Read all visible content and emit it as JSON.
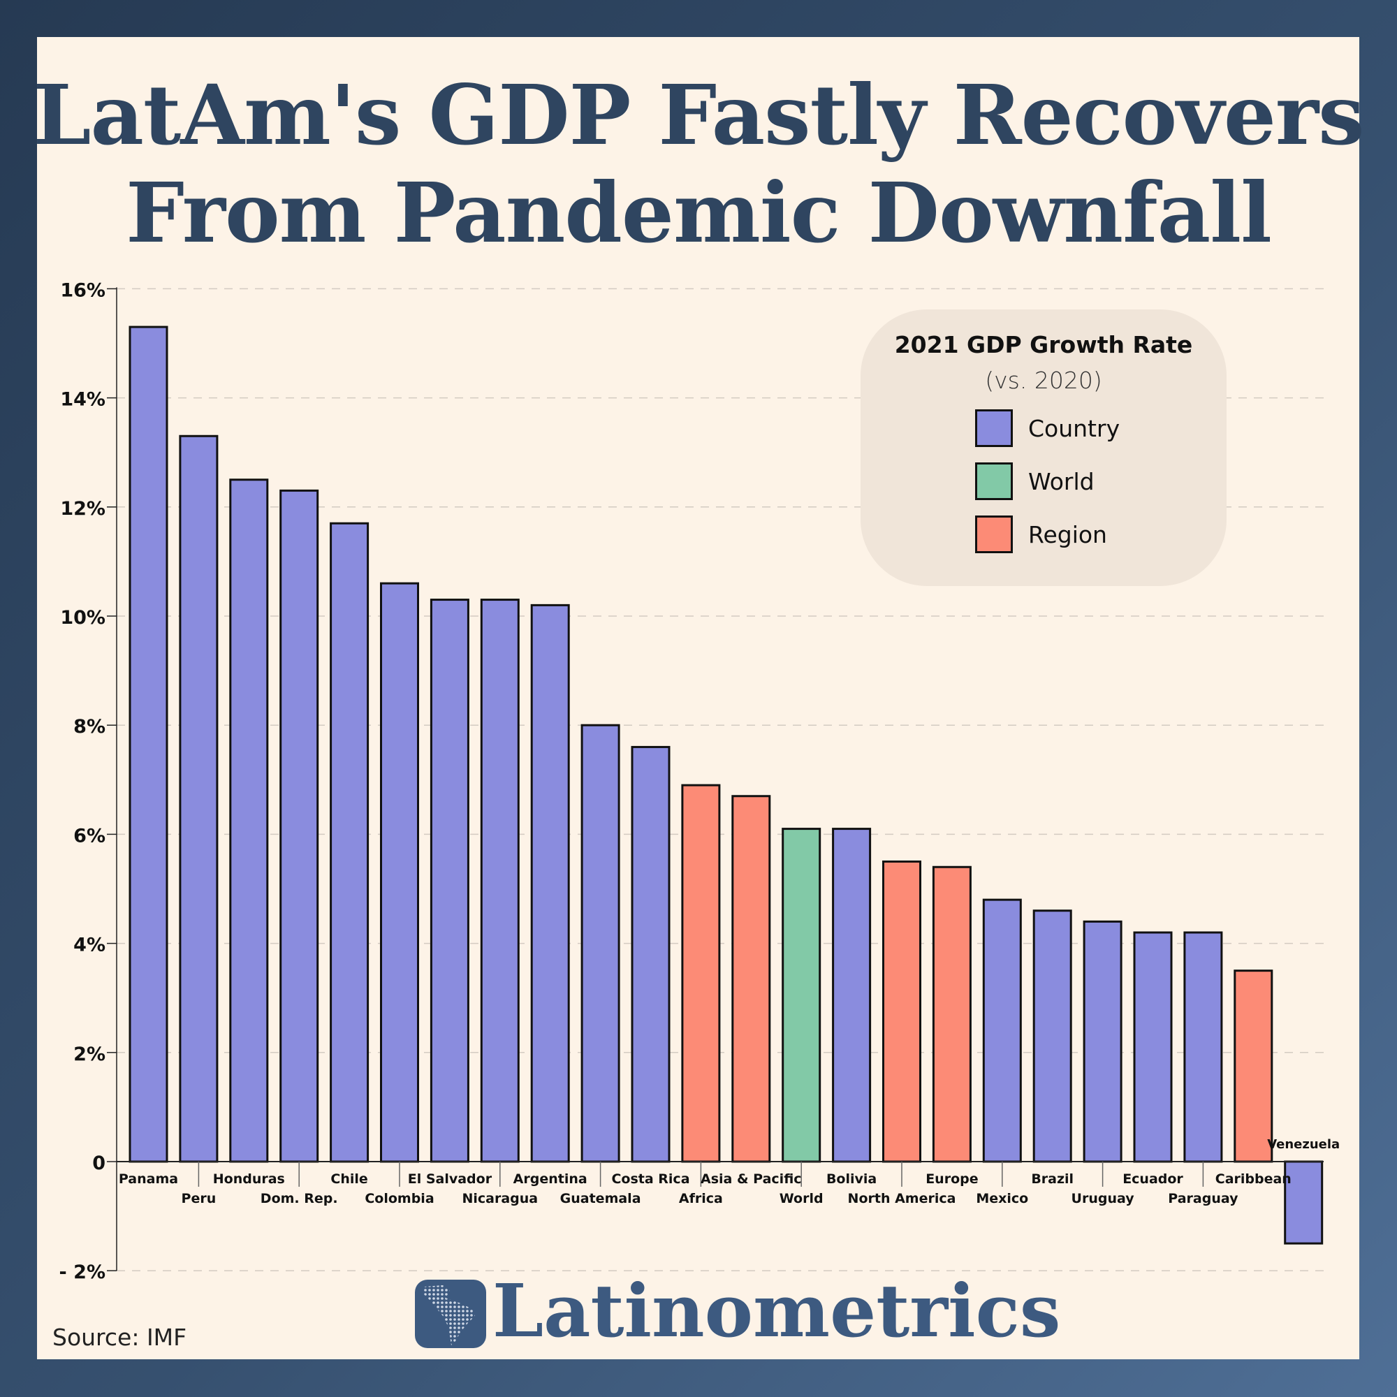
{
  "title_line1": "LatAm's GDP Fastly Recovers",
  "title_line2": "From Pandemic Downfall",
  "legend": {
    "title": "2021 GDP Growth Rate",
    "subtitle": "(vs. 2020)",
    "items": [
      {
        "label": "Country",
        "color": "#8a8cde",
        "kind": "country"
      },
      {
        "label": "World",
        "color": "#82c9a7",
        "kind": "world"
      },
      {
        "label": "Region",
        "color": "#fc8b76",
        "kind": "region"
      }
    ]
  },
  "colors": {
    "country": "#8a8cde",
    "world": "#82c9a7",
    "region": "#fc8b76",
    "title": "#2f4560",
    "brand": "#3d5a80"
  },
  "source": "Source: IMF",
  "brand": {
    "name": "Latinometrics",
    "logo_icon": "latin-america-map-icon"
  },
  "chart_data": {
    "type": "bar",
    "yticks": [
      {
        "value": 16,
        "label": "16%"
      },
      {
        "value": 14,
        "label": "14%"
      },
      {
        "value": 12,
        "label": "12%"
      },
      {
        "value": 10,
        "label": "10%"
      },
      {
        "value": 8,
        "label": "8%"
      },
      {
        "value": 6,
        "label": "6%"
      },
      {
        "value": 4,
        "label": "4%"
      },
      {
        "value": 2,
        "label": "2%"
      },
      {
        "value": 0,
        "label": "0"
      },
      {
        "value": -2,
        "label": "- 2%"
      }
    ],
    "ylim": [
      -2,
      16
    ],
    "grid": true,
    "legend_position": "top-right",
    "bars": [
      {
        "label": "Panama",
        "value": 15.3,
        "kind": "country"
      },
      {
        "label": "Peru",
        "value": 13.3,
        "kind": "country"
      },
      {
        "label": "Honduras",
        "value": 12.5,
        "kind": "country"
      },
      {
        "label": "Dom. Rep.",
        "value": 12.3,
        "kind": "country"
      },
      {
        "label": "Chile",
        "value": 11.7,
        "kind": "country"
      },
      {
        "label": "Colombia",
        "value": 10.6,
        "kind": "country"
      },
      {
        "label": "El Salvador",
        "value": 10.3,
        "kind": "country"
      },
      {
        "label": "Nicaragua",
        "value": 10.3,
        "kind": "country"
      },
      {
        "label": "Argentina",
        "value": 10.2,
        "kind": "country"
      },
      {
        "label": "Guatemala",
        "value": 8.0,
        "kind": "country"
      },
      {
        "label": "Costa Rica",
        "value": 7.6,
        "kind": "country"
      },
      {
        "label": "Africa",
        "value": 6.9,
        "kind": "region"
      },
      {
        "label": "Asia & Pacific",
        "value": 6.7,
        "kind": "region"
      },
      {
        "label": "World",
        "value": 6.1,
        "kind": "world"
      },
      {
        "label": "Bolivia",
        "value": 6.1,
        "kind": "country"
      },
      {
        "label": "North America",
        "value": 5.5,
        "kind": "region"
      },
      {
        "label": "Europe",
        "value": 5.4,
        "kind": "region"
      },
      {
        "label": "Mexico",
        "value": 4.8,
        "kind": "country"
      },
      {
        "label": "Brazil",
        "value": 4.6,
        "kind": "country"
      },
      {
        "label": "Uruguay",
        "value": 4.4,
        "kind": "country"
      },
      {
        "label": "Ecuador",
        "value": 4.2,
        "kind": "country"
      },
      {
        "label": "Paraguay",
        "value": 4.2,
        "kind": "country"
      },
      {
        "label": "Caribbean",
        "value": 3.5,
        "kind": "region"
      },
      {
        "label": "Venezuela",
        "value": -1.5,
        "kind": "country"
      }
    ]
  }
}
